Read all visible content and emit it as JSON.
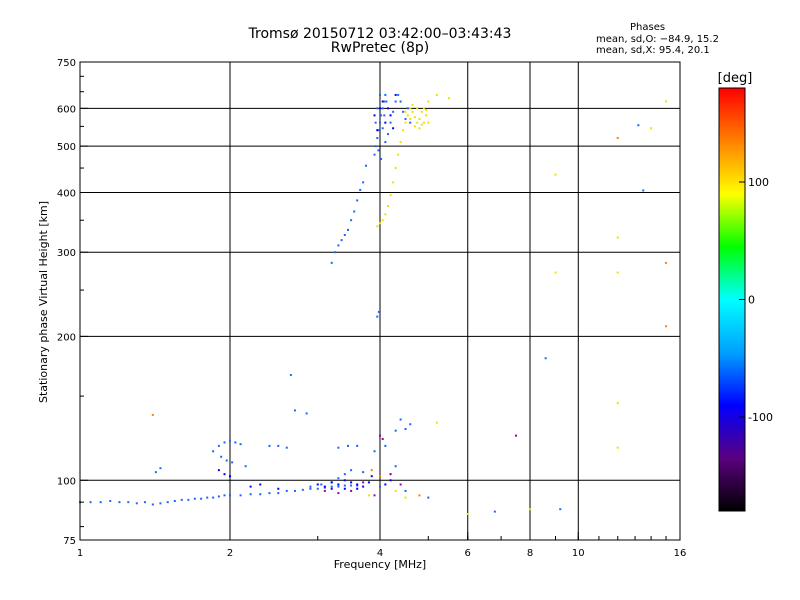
{
  "header": {
    "title_line1": "Tromsø 20150712 03:42:00–03:43:43",
    "title_line2": "RwPretec (8p)"
  },
  "phase_box": {
    "title": "Phases",
    "o_stats": "mean, sd,O: −84.9, 15.2",
    "x_stats": "mean, sd,X:  95.4, 20.1"
  },
  "chart_data": {
    "type": "scatter",
    "xlabel": "Frequency [MHz]",
    "ylabel": "Stationary phase Virtual Height [km]",
    "x_scale": "log",
    "y_scale": "log",
    "xlim": [
      1,
      16
    ],
    "ylim": [
      75,
      750
    ],
    "x_ticks": [
      1,
      2,
      4,
      6,
      8,
      10,
      16
    ],
    "y_ticks": [
      75,
      100,
      200,
      300,
      400,
      500,
      600,
      750
    ],
    "grid": true,
    "colorbar": {
      "label": "[deg]",
      "range": [
        -180,
        180
      ],
      "ticks": [
        100,
        0,
        -100
      ],
      "colors": [
        "#000000",
        "#5a0080",
        "#0000ff",
        "#00a0ff",
        "#00ffff",
        "#00ff00",
        "#ffff00",
        "#ff8000",
        "#ff0000"
      ]
    },
    "series": [
      {
        "color": "#1e64ff",
        "points": [
          [
            1.0,
            90
          ],
          [
            1.05,
            90
          ],
          [
            1.1,
            90
          ],
          [
            1.15,
            90.5
          ],
          [
            1.2,
            90
          ],
          [
            1.25,
            90
          ],
          [
            1.3,
            89.5
          ],
          [
            1.35,
            90
          ],
          [
            1.4,
            89
          ],
          [
            1.45,
            89.5
          ],
          [
            1.5,
            90
          ],
          [
            1.55,
            90.5
          ],
          [
            1.6,
            91
          ],
          [
            1.65,
            91
          ],
          [
            1.7,
            91.5
          ],
          [
            1.75,
            91.5
          ],
          [
            1.8,
            92
          ],
          [
            1.85,
            92
          ],
          [
            1.9,
            92.5
          ],
          [
            1.95,
            93
          ],
          [
            2.0,
            93
          ],
          [
            2.1,
            93
          ],
          [
            2.2,
            93.5
          ],
          [
            2.3,
            93.5
          ],
          [
            2.4,
            94
          ],
          [
            2.5,
            94
          ],
          [
            2.6,
            95
          ],
          [
            2.7,
            95
          ],
          [
            2.8,
            95.5
          ],
          [
            2.9,
            96
          ],
          [
            3.0,
            96
          ],
          [
            3.1,
            96.5
          ],
          [
            3.2,
            97
          ],
          [
            3.3,
            97
          ],
          [
            3.4,
            97.5
          ],
          [
            3.5,
            97.5
          ],
          [
            3.6,
            97.5
          ],
          [
            1.42,
            104
          ],
          [
            1.45,
            106
          ],
          [
            1.85,
            115
          ],
          [
            1.9,
            118
          ],
          [
            1.95,
            120
          ],
          [
            2.0,
            121
          ],
          [
            2.05,
            120
          ],
          [
            2.1,
            119
          ],
          [
            1.92,
            112
          ],
          [
            1.97,
            110
          ],
          [
            2.02,
            109
          ],
          [
            2.15,
            107
          ],
          [
            2.4,
            118
          ],
          [
            2.5,
            118
          ],
          [
            2.6,
            117
          ],
          [
            2.7,
            140
          ],
          [
            2.85,
            138
          ],
          [
            2.65,
            166
          ],
          [
            2.9,
            97
          ],
          [
            3.05,
            98
          ],
          [
            3.2,
            99
          ],
          [
            3.3,
            101
          ],
          [
            3.4,
            103
          ],
          [
            3.5,
            105
          ],
          [
            3.6,
            118
          ],
          [
            3.7,
            104
          ],
          [
            3.3,
            117
          ],
          [
            3.45,
            118
          ],
          [
            3.9,
            115
          ],
          [
            4.0,
            97
          ],
          [
            4.2,
            103
          ],
          [
            4.3,
            107
          ],
          [
            4.4,
            134
          ],
          [
            4.5,
            128
          ],
          [
            4.6,
            131
          ],
          [
            4.3,
            127
          ],
          [
            4.1,
            118
          ],
          [
            4.5,
            95
          ],
          [
            5.0,
            92
          ],
          [
            6.8,
            86
          ],
          [
            9.2,
            87
          ],
          [
            8.6,
            180
          ],
          [
            13.2,
            553
          ],
          [
            13.5,
            404
          ],
          [
            3.98,
            225
          ],
          [
            3.95,
            220
          ],
          [
            3.2,
            285
          ],
          [
            3.25,
            300
          ],
          [
            3.3,
            310
          ],
          [
            3.35,
            318
          ],
          [
            3.4,
            326
          ],
          [
            3.45,
            334
          ],
          [
            3.5,
            350
          ],
          [
            3.55,
            365
          ],
          [
            3.6,
            385
          ],
          [
            3.65,
            405
          ],
          [
            3.7,
            420
          ],
          [
            3.75,
            455
          ],
          [
            3.9,
            480
          ],
          [
            3.92,
            500
          ],
          [
            3.95,
            520
          ],
          [
            3.98,
            540
          ],
          [
            4.0,
            560
          ],
          [
            4.02,
            580
          ],
          [
            4.05,
            600
          ],
          [
            4.08,
            620
          ],
          [
            4.1,
            640
          ],
          [
            3.92,
            560
          ],
          [
            3.95,
            600
          ],
          [
            4.0,
            640
          ],
          [
            4.05,
            545
          ],
          [
            4.1,
            510
          ],
          [
            4.15,
            530
          ],
          [
            4.2,
            560
          ],
          [
            4.25,
            590
          ],
          [
            4.3,
            620
          ],
          [
            4.35,
            640
          ],
          [
            4.4,
            620
          ],
          [
            4.45,
            590
          ],
          [
            4.5,
            570
          ],
          [
            4.55,
            600
          ],
          [
            4.6,
            560
          ],
          [
            3.97,
            490
          ],
          [
            4.02,
            470
          ],
          [
            4.08,
            580
          ],
          [
            4.12,
            620
          ]
        ]
      },
      {
        "color": "#0000ff",
        "points": [
          [
            3.0,
            98
          ],
          [
            3.1,
            97
          ],
          [
            3.2,
            99
          ],
          [
            3.3,
            98
          ],
          [
            3.4,
            100
          ],
          [
            3.5,
            99
          ],
          [
            3.6,
            98
          ],
          [
            3.7,
            97
          ],
          [
            3.8,
            99
          ],
          [
            3.2,
            96
          ],
          [
            3.4,
            96
          ],
          [
            3.6,
            96
          ],
          [
            3.85,
            102
          ],
          [
            4.1,
            98
          ],
          [
            4.2,
            100
          ],
          [
            2.2,
            97
          ],
          [
            2.3,
            98
          ],
          [
            2.5,
            96
          ],
          [
            1.9,
            105
          ],
          [
            1.95,
            103
          ],
          [
            2.0,
            102
          ],
          [
            3.9,
            580
          ],
          [
            3.95,
            540
          ],
          [
            4.0,
            600
          ],
          [
            4.05,
            620
          ],
          [
            4.1,
            560
          ],
          [
            4.15,
            600
          ],
          [
            4.2,
            580
          ],
          [
            4.25,
            545
          ],
          [
            4.3,
            640
          ]
        ]
      },
      {
        "color": "#a000a0",
        "points": [
          [
            3.1,
            95
          ],
          [
            3.3,
            94
          ],
          [
            3.5,
            95
          ],
          [
            3.7,
            99
          ],
          [
            3.9,
            93
          ],
          [
            4.0,
            124
          ],
          [
            4.2,
            103
          ],
          [
            4.4,
            98
          ],
          [
            7.5,
            124
          ],
          [
            4.05,
            122
          ]
        ]
      },
      {
        "color": "#f0e000",
        "points": [
          [
            3.95,
            340
          ],
          [
            4.0,
            345
          ],
          [
            4.05,
            350
          ],
          [
            4.1,
            360
          ],
          [
            4.15,
            375
          ],
          [
            4.2,
            395
          ],
          [
            4.25,
            420
          ],
          [
            4.3,
            450
          ],
          [
            4.35,
            480
          ],
          [
            4.4,
            510
          ],
          [
            4.45,
            540
          ],
          [
            4.5,
            560
          ],
          [
            4.55,
            580
          ],
          [
            4.6,
            600
          ],
          [
            4.65,
            590
          ],
          [
            4.7,
            575
          ],
          [
            4.75,
            560
          ],
          [
            4.8,
            570
          ],
          [
            4.85,
            590
          ],
          [
            4.9,
            600
          ],
          [
            4.95,
            580
          ],
          [
            5.0,
            560
          ],
          [
            4.6,
            570
          ],
          [
            4.7,
            550
          ],
          [
            4.8,
            545
          ],
          [
            4.9,
            560
          ],
          [
            4.5,
            590
          ],
          [
            4.65,
            610
          ],
          [
            4.75,
            600
          ],
          [
            4.85,
            555
          ],
          [
            4.95,
            595
          ],
          [
            5.0,
            620
          ],
          [
            5.2,
            640
          ],
          [
            5.5,
            630
          ],
          [
            9.0,
            436
          ],
          [
            9.0,
            272
          ],
          [
            12.0,
            322
          ],
          [
            12.0,
            272
          ],
          [
            12.0,
            145
          ],
          [
            12.0,
            117
          ],
          [
            14.0,
            545
          ],
          [
            15.0,
            620
          ],
          [
            4.3,
            95
          ],
          [
            4.5,
            92
          ],
          [
            3.8,
            93
          ],
          [
            6.0,
            85
          ],
          [
            8.0,
            87
          ],
          [
            5.2,
            132
          ]
        ]
      },
      {
        "color": "#ff8000",
        "points": [
          [
            1.4,
            137
          ],
          [
            12.0,
            520
          ],
          [
            15.0,
            285
          ],
          [
            15.0,
            210
          ],
          [
            3.85,
            105
          ],
          [
            4.0,
            102
          ],
          [
            4.8,
            93
          ]
        ]
      }
    ]
  }
}
